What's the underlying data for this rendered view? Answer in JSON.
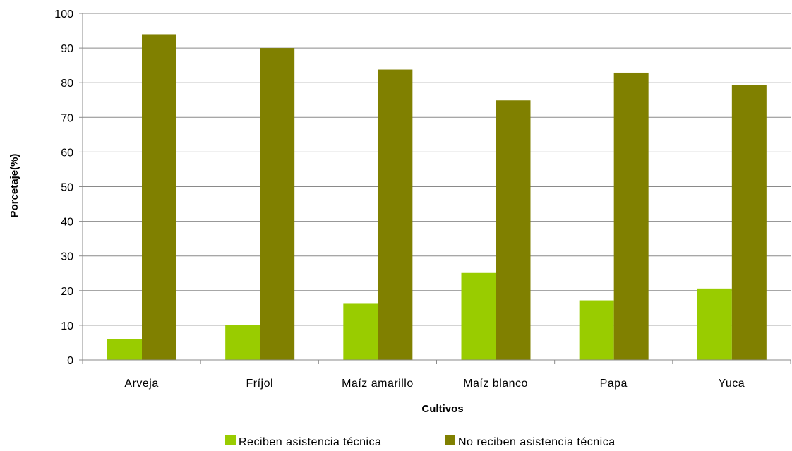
{
  "chart_data": {
    "type": "bar",
    "title": "",
    "xlabel": "Cultivos",
    "ylabel": "Porcetaje(%)",
    "ylim": [
      0,
      100
    ],
    "yticks": [
      0,
      10,
      20,
      30,
      40,
      50,
      60,
      70,
      80,
      90,
      100
    ],
    "grid": true,
    "legend_position": "bottom",
    "categories": [
      "Arveja",
      "Fríjol",
      "Maíz amarillo",
      "Maíz blanco",
      "Papa",
      "Yuca"
    ],
    "series": [
      {
        "name": "Reciben asistencia técnica",
        "color": "#99cc00",
        "values": [
          6,
          10,
          16.2,
          25.1,
          17.2,
          20.6
        ]
      },
      {
        "name": "No reciben asistencia técnica",
        "color": "#808000",
        "values": [
          94,
          90,
          83.8,
          74.9,
          82.9,
          79.4
        ]
      }
    ]
  }
}
